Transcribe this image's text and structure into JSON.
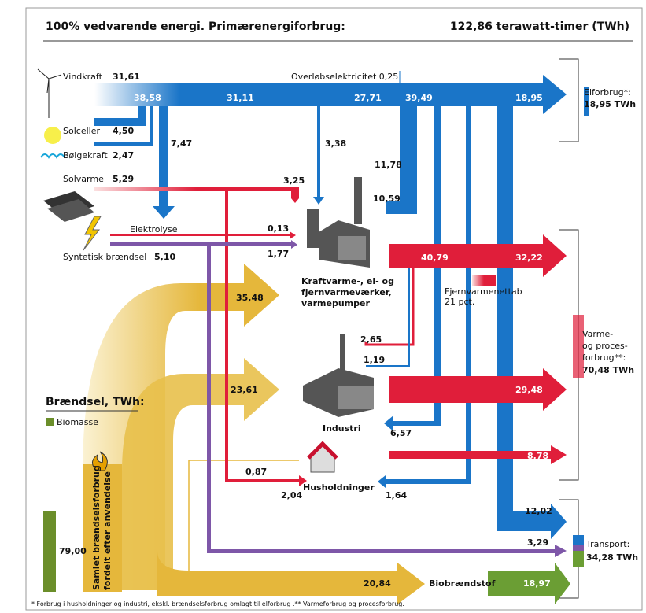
{
  "header": {
    "title": "100% vedvarende energi. Primærenergiforbrug:",
    "total": "122,86 terawatt-timer (TWh)"
  },
  "sources": [
    {
      "label": "Vindkraft",
      "value": "31,61"
    },
    {
      "label": "Solceller",
      "value": "4,50"
    },
    {
      "label": "Bølgekraft",
      "value": "2,47"
    },
    {
      "label": "Solvarme",
      "value": "5,29"
    },
    {
      "label": "Syntetisk brændsel",
      "value": "5,10"
    }
  ],
  "electrolysis": "Elektrolyse",
  "overflow": "Overløbselektricitet 0,25",
  "flows": [
    "38,58",
    "31,11",
    "27,71",
    "39,49",
    "18,95",
    "7,47",
    "3,38",
    "11,78",
    "10,59",
    "3,25",
    "0,13",
    "1,77",
    "35,48",
    "40,79",
    "32,22",
    "23,61",
    "29,48",
    "2,65",
    "1,19",
    "6,57",
    "8,78",
    "0,87",
    "2,04",
    "1,64",
    "12,02",
    "3,29",
    "20,84",
    "18,97",
    "79,00"
  ],
  "nodes": {
    "plant": [
      "Kraftvarme-, el- og",
      "fjernvarmeværker,",
      "varmepumper"
    ],
    "industry": "Industri",
    "households": "Husholdninger",
    "biofuel": "Biobrændstof",
    "loss": [
      "Fjernvarmenettab",
      "21 pct."
    ]
  },
  "outputs": {
    "electricity": [
      "Elforbrug*:",
      "18,95 TWh"
    ],
    "heat": [
      "Varme-",
      "og proces-",
      "forbrug**:",
      "70,48 TWh"
    ],
    "transport": [
      "Transport:",
      "34,28 TWh"
    ]
  },
  "legend": {
    "title": "Brændsel, TWh:",
    "items": [
      "Biomasse"
    ]
  },
  "fuel_column": [
    "Samlet brændselsforbrug",
    "fordelt efter anvendelse"
  ],
  "footnote": "* Forbrug i husholdninger og industri, ekskl. brændselsforbrug omlagt til elforbrug .** Varmeforbrug og procesforbrug."
}
